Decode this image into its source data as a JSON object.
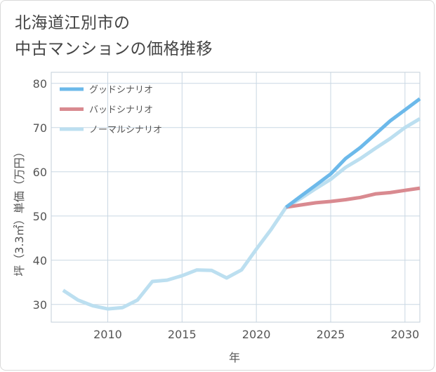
{
  "title": {
    "line1": "北海道江別市の",
    "line2": "中古マンションの価格推移"
  },
  "colors": {
    "good": "#6cb9ea",
    "bad": "#d98a90",
    "normal": "#bcdff0",
    "grid": "#c9d7e3",
    "frame": "#c3cfda",
    "text": "#555555"
  },
  "chart_data": {
    "type": "line",
    "ylabel": "坪（3.3㎡）単価（万円）",
    "xlabel": "年",
    "xlim": [
      2006.2,
      2031
    ],
    "ylim": [
      26,
      82.5
    ],
    "x_ticks": [
      2010,
      2015,
      2020,
      2025,
      2030
    ],
    "y_ticks": [
      30,
      40,
      50,
      60,
      70,
      80
    ],
    "grid": true,
    "legend_position": "top-left",
    "series": [
      {
        "name": "グッドシナリオ",
        "color_key": "good",
        "points": [
          [
            2022,
            52
          ],
          [
            2023,
            54.5
          ],
          [
            2024,
            57
          ],
          [
            2025,
            59.5
          ],
          [
            2026,
            63
          ],
          [
            2027,
            65.5
          ],
          [
            2028,
            68.5
          ],
          [
            2029,
            71.5
          ],
          [
            2030,
            74
          ],
          [
            2031,
            76.5
          ]
        ]
      },
      {
        "name": "バッドシナリオ",
        "color_key": "bad",
        "points": [
          [
            2022,
            52
          ],
          [
            2023,
            52.5
          ],
          [
            2024,
            53
          ],
          [
            2025,
            53.3
          ],
          [
            2026,
            53.7
          ],
          [
            2027,
            54.2
          ],
          [
            2028,
            55
          ],
          [
            2029,
            55.3
          ],
          [
            2030,
            55.8
          ],
          [
            2031,
            56.3
          ]
        ]
      },
      {
        "name": "ノーマルシナリオ",
        "color_key": "normal",
        "points": [
          [
            2007,
            33.2
          ],
          [
            2008,
            31
          ],
          [
            2009,
            29.7
          ],
          [
            2010,
            29
          ],
          [
            2011,
            29.3
          ],
          [
            2012,
            31
          ],
          [
            2013,
            35.2
          ],
          [
            2014,
            35.5
          ],
          [
            2015,
            36.5
          ],
          [
            2016,
            37.8
          ],
          [
            2017,
            37.7
          ],
          [
            2018,
            36
          ],
          [
            2019,
            37.8
          ],
          [
            2020,
            42.5
          ],
          [
            2021,
            47
          ],
          [
            2022,
            52
          ],
          [
            2023,
            54
          ],
          [
            2024,
            56.2
          ],
          [
            2025,
            58.3
          ],
          [
            2026,
            61
          ],
          [
            2027,
            63
          ],
          [
            2028,
            65.3
          ],
          [
            2029,
            67.5
          ],
          [
            2030,
            70
          ],
          [
            2031,
            72
          ]
        ]
      }
    ]
  }
}
